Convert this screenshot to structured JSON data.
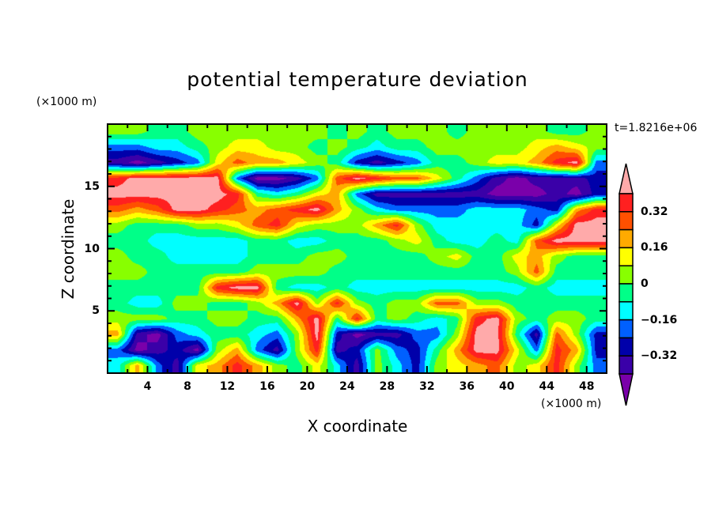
{
  "chart_data": {
    "type": "heatmap",
    "subtype": "filled-contour",
    "title": "potential temperature deviation",
    "xlabel": "X coordinate",
    "ylabel": "Z coordinate",
    "x_unit": "(×1000 m)",
    "y_unit": "(×1000 m)",
    "time_label": "t=1.8216e+06",
    "xlim": [
      0,
      50
    ],
    "ylim": [
      0,
      20
    ],
    "xticks": [
      4,
      8,
      12,
      16,
      20,
      24,
      28,
      32,
      36,
      40,
      44,
      48
    ],
    "xtick_labels": [
      "4",
      "8",
      "12",
      "16",
      "20",
      "24",
      "28",
      "32",
      "36",
      "40",
      "44",
      "48"
    ],
    "yticks": [
      5,
      10,
      15
    ],
    "ytick_labels": [
      "5",
      "10",
      "15"
    ],
    "levels": [
      -0.4,
      -0.32,
      -0.24,
      -0.16,
      -0.08,
      0,
      0.08,
      0.16,
      0.24,
      0.32,
      0.4
    ],
    "colorbar_tick_values": [
      0.32,
      0.16,
      0,
      -0.16,
      -0.32
    ],
    "colorbar_tick_labels": [
      "0.32",
      "0.16",
      "0",
      "−0.16",
      "−0.32"
    ],
    "colors": [
      "#7a00aa",
      "#3a00a8",
      "#0000aa",
      "#0060ff",
      "#00ffff",
      "#00ff88",
      "#88ff00",
      "#ffff00",
      "#ffaa00",
      "#ff5000",
      "#ff2020",
      "#ffaaaa"
    ],
    "grid_x": [
      1,
      3,
      5,
      7,
      9,
      11,
      13,
      15,
      17,
      19,
      21,
      23,
      25,
      27,
      29,
      31,
      33,
      35,
      37,
      39,
      41,
      43,
      45,
      47,
      49
    ],
    "grid_z": [
      19.4,
      18.1,
      16.9,
      15.6,
      14.4,
      13.1,
      11.9,
      10.6,
      9.4,
      8.1,
      6.9,
      5.6,
      4.4,
      3.1,
      1.9,
      0.6
    ],
    "grid_level_index": [
      [
        6,
        6,
        5,
        5,
        6,
        6,
        6,
        6,
        6,
        6,
        6,
        5,
        6,
        5,
        6,
        6,
        6,
        5,
        6,
        6,
        6,
        6,
        5,
        5,
        6
      ],
      [
        3,
        3,
        4,
        4,
        5,
        6,
        7,
        7,
        6,
        6,
        5,
        6,
        5,
        4,
        5,
        5,
        6,
        6,
        6,
        6,
        6,
        7,
        8,
        7,
        6
      ],
      [
        1,
        0,
        1,
        2,
        3,
        7,
        9,
        8,
        8,
        7,
        6,
        5,
        2,
        1,
        2,
        3,
        5,
        5,
        6,
        7,
        7,
        8,
        10,
        11,
        3
      ],
      [
        10,
        11,
        11,
        11,
        11,
        11,
        3,
        0,
        0,
        1,
        3,
        9,
        11,
        10,
        9,
        9,
        7,
        5,
        3,
        1,
        0,
        1,
        1,
        1,
        2
      ],
      [
        11,
        11,
        11,
        11,
        11,
        11,
        10,
        5,
        4,
        5,
        7,
        8,
        3,
        1,
        1,
        1,
        1,
        1,
        1,
        0,
        0,
        0,
        1,
        0,
        2
      ],
      [
        9,
        8,
        9,
        11,
        11,
        10,
        9,
        8,
        9,
        10,
        11,
        8,
        6,
        4,
        3,
        3,
        3,
        3,
        4,
        4,
        4,
        3,
        2,
        8,
        10
      ],
      [
        6,
        5,
        5,
        5,
        6,
        6,
        7,
        9,
        10,
        7,
        6,
        6,
        6,
        8,
        10,
        6,
        4,
        4,
        4,
        4,
        4,
        2,
        7,
        11,
        11
      ],
      [
        5,
        5,
        4,
        4,
        4,
        4,
        4,
        5,
        5,
        4,
        4,
        5,
        5,
        5,
        6,
        7,
        5,
        4,
        4,
        5,
        4,
        9,
        11,
        11,
        11
      ],
      [
        6,
        5,
        5,
        4,
        4,
        4,
        4,
        5,
        5,
        5,
        6,
        6,
        5,
        5,
        5,
        5,
        6,
        7,
        5,
        5,
        7,
        8,
        6,
        5,
        5
      ],
      [
        6,
        6,
        5,
        5,
        5,
        5,
        5,
        6,
        6,
        6,
        6,
        5,
        5,
        5,
        5,
        5,
        5,
        5,
        5,
        5,
        6,
        9,
        5,
        5,
        5
      ],
      [
        5,
        5,
        5,
        5,
        5,
        10,
        11,
        11,
        5,
        4,
        4,
        5,
        4,
        4,
        4,
        4,
        4,
        4,
        4,
        4,
        4,
        5,
        4,
        4,
        4
      ],
      [
        5,
        4,
        4,
        6,
        6,
        5,
        5,
        6,
        8,
        11,
        6,
        10,
        6,
        5,
        6,
        6,
        9,
        9,
        6,
        6,
        5,
        5,
        5,
        5,
        5
      ],
      [
        6,
        6,
        6,
        5,
        5,
        6,
        6,
        5,
        5,
        8,
        11,
        5,
        10,
        5,
        6,
        5,
        4,
        5,
        10,
        11,
        6,
        5,
        6,
        6,
        5
      ],
      [
        8,
        1,
        0,
        3,
        4,
        5,
        5,
        4,
        3,
        6,
        11,
        2,
        0,
        1,
        1,
        3,
        3,
        6,
        11,
        11,
        5,
        1,
        9,
        6,
        2
      ],
      [
        3,
        0,
        1,
        2,
        0,
        6,
        8,
        3,
        1,
        6,
        10,
        1,
        2,
        6,
        3,
        2,
        5,
        8,
        11,
        11,
        7,
        3,
        10,
        8,
        2
      ],
      [
        4,
        8,
        3,
        1,
        7,
        8,
        10,
        8,
        6,
        5,
        7,
        4,
        1,
        6,
        4,
        2,
        6,
        7,
        8,
        9,
        6,
        7,
        10,
        6,
        3
      ]
    ]
  }
}
